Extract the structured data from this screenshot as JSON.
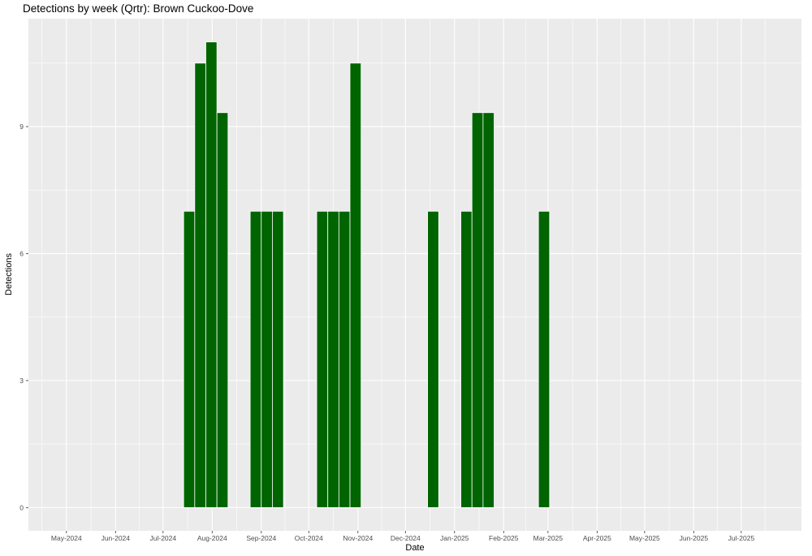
{
  "chart_data": {
    "type": "bar",
    "title": "Detections by week (Qrtr): Brown Cuckoo-Dove",
    "xlabel": "Date",
    "ylabel": "Detections",
    "ylim": [
      -0.55,
      11.55
    ],
    "y_ticks": [
      0,
      3,
      6,
      9
    ],
    "x_range": [
      "2024-04-07",
      "2025-08-08"
    ],
    "x_ticks": [
      {
        "date": "2024-05-01",
        "label": "May-2024"
      },
      {
        "date": "2024-06-01",
        "label": "Jun-2024"
      },
      {
        "date": "2024-07-01",
        "label": "Jul-2024"
      },
      {
        "date": "2024-08-01",
        "label": "Aug-2024"
      },
      {
        "date": "2024-09-01",
        "label": "Sep-2024"
      },
      {
        "date": "2024-10-01",
        "label": "Oct-2024"
      },
      {
        "date": "2024-11-01",
        "label": "Nov-2024"
      },
      {
        "date": "2024-12-01",
        "label": "Dec-2024"
      },
      {
        "date": "2025-01-01",
        "label": "Jan-2025"
      },
      {
        "date": "2025-02-01",
        "label": "Feb-2025"
      },
      {
        "date": "2025-03-01",
        "label": "Mar-2025"
      },
      {
        "date": "2025-04-01",
        "label": "Apr-2025"
      },
      {
        "date": "2025-05-01",
        "label": "May-2025"
      },
      {
        "date": "2025-06-01",
        "label": "Jun-2025"
      },
      {
        "date": "2025-07-01",
        "label": "Jul-2025"
      }
    ],
    "bar_width_days": 7,
    "bar_color": "#006400",
    "panel_background": "#ebebeb",
    "grid": true,
    "legend": "none",
    "bars": [
      {
        "week_start": "2024-07-14",
        "value": 7
      },
      {
        "week_start": "2024-07-21",
        "value": 10.5
      },
      {
        "week_start": "2024-07-28",
        "value": 11
      },
      {
        "week_start": "2024-08-04",
        "value": 9.33
      },
      {
        "week_start": "2024-08-25",
        "value": 7
      },
      {
        "week_start": "2024-09-01",
        "value": 7
      },
      {
        "week_start": "2024-09-08",
        "value": 7
      },
      {
        "week_start": "2024-10-06",
        "value": 7
      },
      {
        "week_start": "2024-10-13",
        "value": 7
      },
      {
        "week_start": "2024-10-20",
        "value": 7
      },
      {
        "week_start": "2024-10-27",
        "value": 10.5
      },
      {
        "week_start": "2024-12-15",
        "value": 7
      },
      {
        "week_start": "2025-01-05",
        "value": 7
      },
      {
        "week_start": "2025-01-12",
        "value": 9.33
      },
      {
        "week_start": "2025-01-19",
        "value": 9.33
      },
      {
        "week_start": "2025-02-23",
        "value": 7
      }
    ]
  }
}
